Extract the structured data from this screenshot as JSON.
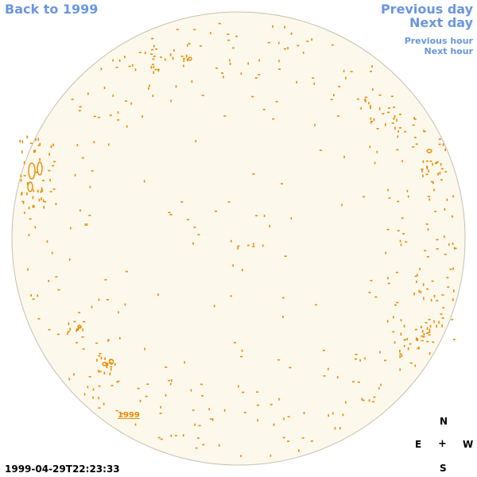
{
  "nav": {
    "back": "Back to 1999",
    "previous_day": "Previous day",
    "next_day": "Next day",
    "previous_hour": "Previous hour",
    "next_hour": "Next hour"
  },
  "disk": {
    "year_label": "1999",
    "fill_color": "#fdf8ec",
    "outline_color": "#c8c0b0",
    "feature_color": "#e88c00"
  },
  "compass": {
    "north": "N",
    "east": "E",
    "center": "+",
    "west": "W",
    "south": "S"
  },
  "timestamp": "1999-04-29T22:23:33"
}
